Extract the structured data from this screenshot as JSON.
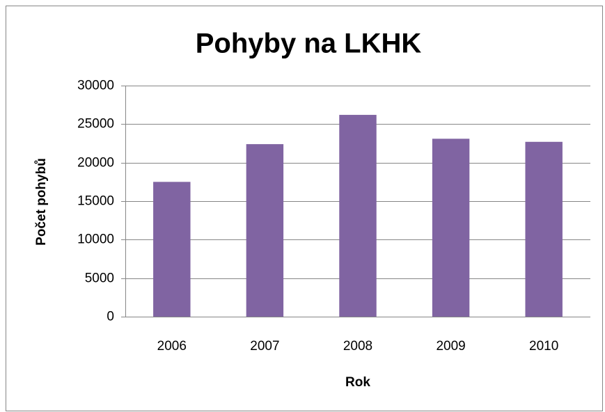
{
  "chart_data": {
    "type": "bar",
    "title": "Pohyby na LKHK",
    "x_label": "Rok",
    "y_label": "Počet pohybů",
    "categories": [
      "2006",
      "2007",
      "2008",
      "2009",
      "2010"
    ],
    "values": [
      17500,
      22400,
      26200,
      23100,
      22700
    ],
    "color": "#8064a2",
    "ylim": [
      0,
      30000
    ],
    "yticks": [
      0,
      5000,
      10000,
      15000,
      20000,
      25000,
      30000
    ],
    "grid": true
  }
}
